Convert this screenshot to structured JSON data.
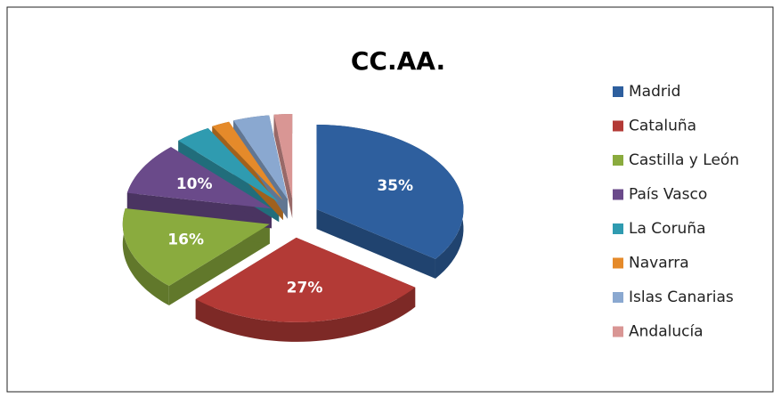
{
  "chart_data": {
    "type": "pie",
    "title": "CC.AA.",
    "categories": [
      "Madrid",
      "Cataluña",
      "Castilla y León",
      "País Vasco",
      "La Coruña",
      "Navarra",
      "Islas Canarias",
      "Andalucía"
    ],
    "values": [
      35,
      27,
      16,
      10,
      4,
      2,
      4,
      2
    ],
    "value_labels": [
      "35%",
      "27%",
      "16%",
      "10%",
      null,
      null,
      null,
      null
    ],
    "colors": [
      "#2e5f9e",
      "#b33a36",
      "#8aab3e",
      "#6a4a8a",
      "#2f9bb0",
      "#e58a2a",
      "#8aa8d0",
      "#d99694"
    ],
    "legend": "right"
  }
}
